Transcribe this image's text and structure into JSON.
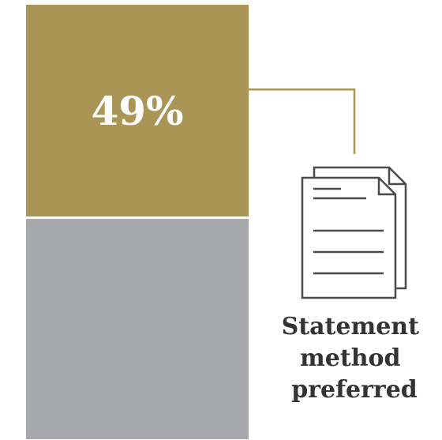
{
  "chart_data": {
    "type": "bar",
    "stacked": true,
    "orientation": "vertical",
    "segments": [
      {
        "value": 49,
        "label": "49%",
        "color": "#ab9556",
        "callout": "Statement method preferred",
        "icon": "document-icon"
      },
      {
        "value": 51,
        "label": "",
        "color": "#a7a8ab"
      }
    ],
    "total": 100,
    "callout_lines": [
      "Statement",
      "method",
      "preferred"
    ]
  }
}
